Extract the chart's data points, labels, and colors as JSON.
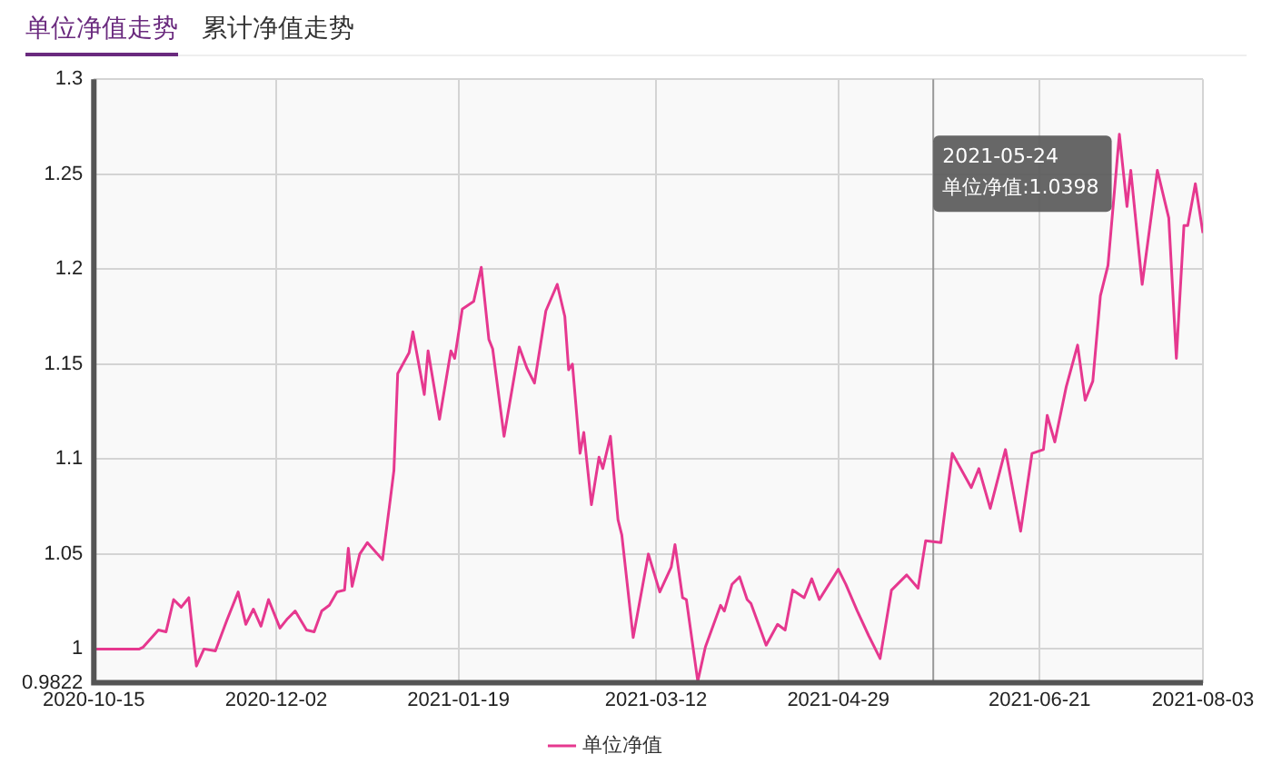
{
  "chart_data": {
    "type": "line",
    "title": "单位净值走势",
    "subtitle": "累计净值走势",
    "x": [
      "2020-10-15",
      "2020-10-27",
      "2020-10-28",
      "2020-11-01",
      "2020-11-03",
      "2020-11-05",
      "2020-11-07",
      "2020-11-09",
      "2020-11-11",
      "2020-11-13",
      "2020-11-16",
      "2020-11-19",
      "2020-11-22",
      "2020-11-24",
      "2020-11-26",
      "2020-11-28",
      "2020-11-30",
      "2020-12-03",
      "2020-12-05",
      "2020-12-07",
      "2020-12-10",
      "2020-12-12",
      "2020-12-14",
      "2020-12-16",
      "2020-12-18",
      "2020-12-20",
      "2020-12-21",
      "2020-12-22",
      "2020-12-24",
      "2020-12-26",
      "2020-12-30",
      "2021-01-01",
      "2021-01-02",
      "2021-01-03",
      "2021-01-06",
      "2021-01-07",
      "2021-01-10",
      "2021-01-11",
      "2021-01-14",
      "2021-01-17",
      "2021-01-18",
      "2021-01-20",
      "2021-01-23",
      "2021-01-25",
      "2021-01-27",
      "2021-01-28",
      "2021-01-31",
      "2021-02-04",
      "2021-02-06",
      "2021-02-08",
      "2021-02-11",
      "2021-02-14",
      "2021-02-16",
      "2021-02-17",
      "2021-02-18",
      "2021-02-20",
      "2021-02-21",
      "2021-02-23",
      "2021-02-25",
      "2021-02-26",
      "2021-02-28",
      "2021-03-02",
      "2021-03-03",
      "2021-03-06",
      "2021-03-10",
      "2021-03-13",
      "2021-03-16",
      "2021-03-17",
      "2021-03-19",
      "2021-03-20",
      "2021-03-23",
      "2021-03-25",
      "2021-03-29",
      "2021-03-30",
      "2021-04-01",
      "2021-04-03",
      "2021-04-05",
      "2021-04-06",
      "2021-04-10",
      "2021-04-13",
      "2021-04-15",
      "2021-04-17",
      "2021-04-20",
      "2021-04-22",
      "2021-04-24",
      "2021-04-29",
      "2021-05-01",
      "2021-05-04",
      "2021-05-07",
      "2021-05-10",
      "2021-05-13",
      "2021-05-17",
      "2021-05-20",
      "2021-05-22",
      "2021-05-26",
      "2021-05-29",
      "2021-06-03",
      "2021-06-05",
      "2021-06-08",
      "2021-06-12",
      "2021-06-16",
      "2021-06-19",
      "2021-06-22",
      "2021-06-23",
      "2021-06-25",
      "2021-06-28",
      "2021-07-01",
      "2021-07-03",
      "2021-07-05",
      "2021-07-07",
      "2021-07-09",
      "2021-07-12",
      "2021-07-14",
      "2021-07-15",
      "2021-07-18",
      "2021-07-22",
      "2021-07-25",
      "2021-07-27",
      "2021-07-29",
      "2021-07-30",
      "2021-08-01",
      "2021-08-03"
    ],
    "series": [
      {
        "name": "单位净值",
        "color": "#e6388f",
        "values": [
          1.0,
          1.0,
          1.001,
          1.01,
          1.009,
          1.026,
          1.022,
          1.027,
          0.991,
          1.0,
          0.999,
          1.015,
          1.03,
          1.013,
          1.021,
          1.012,
          1.026,
          1.011,
          1.016,
          1.02,
          1.01,
          1.009,
          1.02,
          1.023,
          1.03,
          1.031,
          1.053,
          1.033,
          1.05,
          1.056,
          1.047,
          1.078,
          1.094,
          1.145,
          1.156,
          1.167,
          1.134,
          1.157,
          1.121,
          1.157,
          1.153,
          1.179,
          1.183,
          1.201,
          1.163,
          1.158,
          1.112,
          1.159,
          1.148,
          1.14,
          1.178,
          1.192,
          1.175,
          1.147,
          1.15,
          1.103,
          1.114,
          1.076,
          1.101,
          1.095,
          1.112,
          1.068,
          1.06,
          1.006,
          1.05,
          1.03,
          1.043,
          1.055,
          1.027,
          1.026,
          0.983,
          1.001,
          1.023,
          1.02,
          1.034,
          1.038,
          1.026,
          1.024,
          1.002,
          1.013,
          1.01,
          1.031,
          1.027,
          1.037,
          1.026,
          1.042,
          1.034,
          1.02,
          1.007,
          0.995,
          1.031,
          1.039,
          1.032,
          1.057,
          1.056,
          1.103,
          1.085,
          1.095,
          1.074,
          1.105,
          1.062,
          1.103,
          1.105,
          1.123,
          1.109,
          1.138,
          1.16,
          1.131,
          1.141,
          1.186,
          1.202,
          1.271,
          1.233,
          1.252,
          1.192,
          1.252,
          1.227,
          1.153,
          1.223,
          1.223,
          1.245,
          1.219
        ]
      }
    ],
    "xlim": [
      "2020-10-15",
      "2021-08-03"
    ],
    "xticks": [
      "2020-10-15",
      "2020-12-02",
      "2021-01-19",
      "2021-03-12",
      "2021-04-29",
      "2021-06-21",
      "2021-08-03"
    ],
    "ylim": [
      0.9822,
      1.3
    ],
    "yticks": [
      0.9822,
      1,
      1.05,
      1.1,
      1.15,
      1.2,
      1.25,
      1.3
    ],
    "ref_lines": [
      {
        "axis": "x",
        "value": "2021-05-24",
        "color": "#999999"
      }
    ],
    "annotations": [
      {
        "text": "2021-05-24\n单位净值:1.0398",
        "x": "2021-05-24"
      }
    ],
    "grid": true,
    "legend": "bottom",
    "marker": "none",
    "line_style": "solid"
  }
}
